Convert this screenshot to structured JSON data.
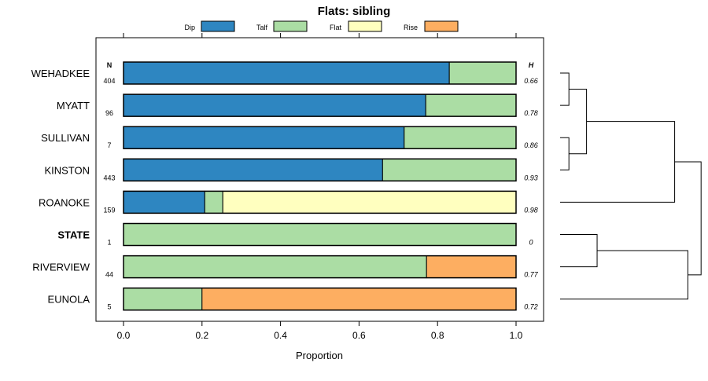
{
  "chart_data": {
    "type": "bar",
    "orientation": "horizontal",
    "stacked": true,
    "title": "Flats: sibling",
    "xlabel": "Proportion",
    "xlim": [
      0,
      1
    ],
    "x_ticks": [
      "0.0",
      "0.2",
      "0.4",
      "0.6",
      "0.8",
      "1.0"
    ],
    "x_tick_values": [
      0,
      0.2,
      0.4,
      0.6,
      0.8,
      1.0
    ],
    "n_header": "N",
    "h_header": "H",
    "legend": [
      {
        "name": "Dip",
        "color": "#2e86c1"
      },
      {
        "name": "Talf",
        "color": "#abdda4"
      },
      {
        "name": "Flat",
        "color": "#ffffbf"
      },
      {
        "name": "Rise",
        "color": "#fdae61"
      }
    ],
    "categories": [
      "WEHADKEE",
      "MYATT",
      "SULLIVAN",
      "KINSTON",
      "ROANOKE",
      "STATE",
      "RIVERVIEW",
      "EUNOLA"
    ],
    "bold_categories": [
      "STATE"
    ],
    "n_values": [
      "404",
      "96",
      "7",
      "443",
      "159",
      "1",
      "44",
      "5"
    ],
    "h_values": [
      "0.66",
      "0.78",
      "0.86",
      "0.93",
      "0.98",
      "0",
      "0.77",
      "0.72"
    ],
    "series": [
      {
        "name": "Dip",
        "values": [
          0.83,
          0.77,
          0.715,
          0.66,
          0.207,
          0,
          0,
          0
        ]
      },
      {
        "name": "Talf",
        "values": [
          0.17,
          0.23,
          0.285,
          0.34,
          0.046,
          1.0,
          0.772,
          0.2
        ]
      },
      {
        "name": "Flat",
        "values": [
          0,
          0,
          0,
          0,
          0.747,
          0,
          0,
          0
        ]
      },
      {
        "name": "Rise",
        "values": [
          0,
          0,
          0,
          0,
          0,
          0,
          0.228,
          0.8
        ]
      }
    ],
    "dendrogram": {
      "merges": [
        {
          "a": "leaf:0",
          "b": "leaf:1",
          "height": 0.1
        },
        {
          "a": "leaf:2",
          "b": "leaf:3",
          "height": 0.1
        },
        {
          "a": "node:0",
          "b": "node:1",
          "height": 0.3
        },
        {
          "a": "node:2",
          "b": "leaf:4",
          "height": 1.3
        },
        {
          "a": "leaf:5",
          "b": "leaf:6",
          "height": 0.42
        },
        {
          "a": "node:4",
          "b": "leaf:7",
          "height": 1.45
        },
        {
          "a": "node:3",
          "b": "node:5",
          "height": 1.6
        }
      ]
    }
  }
}
